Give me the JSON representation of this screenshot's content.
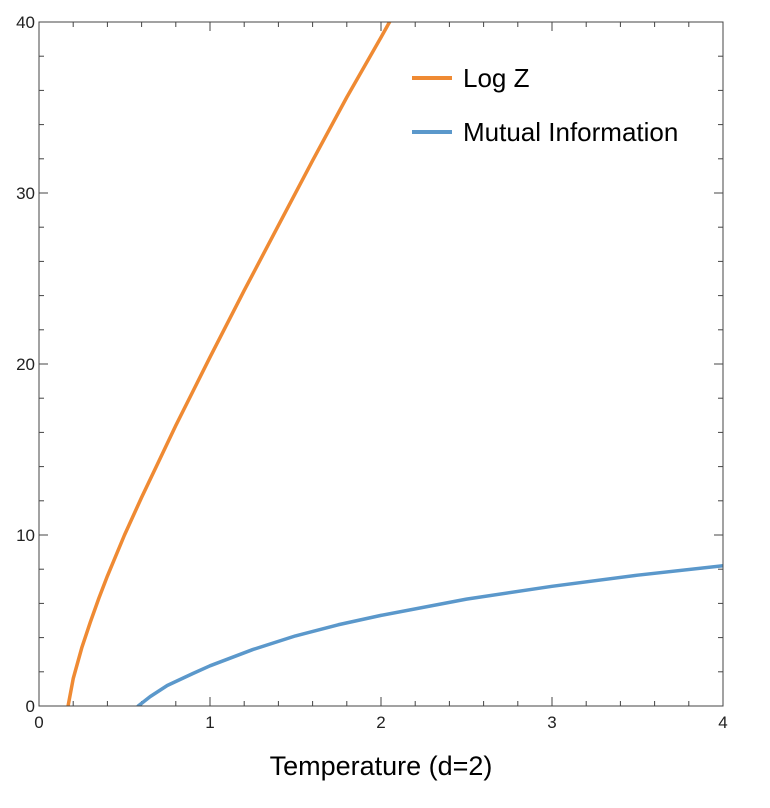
{
  "chart_data": {
    "type": "line",
    "title": "",
    "xlabel": "Temperature (d=2)",
    "ylabel": "",
    "xlim": [
      0,
      4
    ],
    "ylim": [
      0,
      40
    ],
    "x_ticks": [
      "0",
      "1",
      "2",
      "3",
      "4"
    ],
    "y_ticks": [
      "0",
      "10",
      "20",
      "30",
      "40"
    ],
    "grid": false,
    "frame": true,
    "legend_position": "top-right",
    "series": [
      {
        "name": "Log Z",
        "color": "#EF8A33",
        "points": [
          [
            0.17,
            0
          ],
          [
            0.2,
            1.6
          ],
          [
            0.25,
            3.4
          ],
          [
            0.3,
            4.9
          ],
          [
            0.35,
            6.3
          ],
          [
            0.4,
            7.6
          ],
          [
            0.5,
            10.0
          ],
          [
            0.6,
            12.2
          ],
          [
            0.7,
            14.3
          ],
          [
            0.8,
            16.4
          ],
          [
            0.9,
            18.4
          ],
          [
            1.0,
            20.4
          ],
          [
            1.2,
            24.3
          ],
          [
            1.4,
            28.1
          ],
          [
            1.6,
            31.9
          ],
          [
            1.8,
            35.6
          ],
          [
            2.0,
            39.1
          ],
          [
            2.05,
            40.0
          ]
        ]
      },
      {
        "name": "Mutual Information",
        "color": "#5B98CB",
        "points": [
          [
            0.58,
            0
          ],
          [
            0.65,
            0.55
          ],
          [
            0.75,
            1.2
          ],
          [
            0.9,
            1.9
          ],
          [
            1.0,
            2.35
          ],
          [
            1.25,
            3.3
          ],
          [
            1.5,
            4.1
          ],
          [
            1.75,
            4.75
          ],
          [
            2.0,
            5.3
          ],
          [
            2.5,
            6.25
          ],
          [
            3.0,
            7.0
          ],
          [
            3.5,
            7.65
          ],
          [
            4.0,
            8.2
          ]
        ]
      }
    ]
  }
}
